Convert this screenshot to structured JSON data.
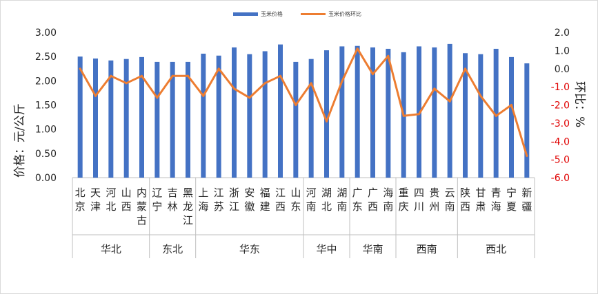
{
  "chart_data": {
    "type": "bar+line",
    "legend": [
      "玉米价格",
      "玉米价格环比"
    ],
    "y_left": {
      "label": "价格：元/公斤",
      "ticks": [
        "0.00",
        "0.50",
        "1.00",
        "1.50",
        "2.00",
        "2.50",
        "3.00"
      ],
      "range": [
        0,
        3.0
      ]
    },
    "y_right": {
      "label": "环比：%",
      "ticks": [
        "2.0",
        "1.0",
        "0.0",
        "-1.0",
        "-2.0",
        "-3.0",
        "-4.0",
        "-5.0",
        "-6.0"
      ],
      "range": [
        -6.0,
        2.0
      ]
    },
    "categories": [
      "北京",
      "天津",
      "河北",
      "山西",
      "内蒙古",
      "辽宁",
      "吉林",
      "黑龙江",
      "上海",
      "江苏",
      "浙江",
      "安徽",
      "福建",
      "江西",
      "山东",
      "河南",
      "湖北",
      "湖南",
      "广东",
      "广西",
      "海南",
      "重庆",
      "四川",
      "贵州",
      "云南",
      "陕西",
      "甘肃",
      "青海",
      "宁夏",
      "新疆"
    ],
    "category_labels": [
      [
        "北",
        "京"
      ],
      [
        "天",
        "津"
      ],
      [
        "河",
        "北"
      ],
      [
        "山",
        "西"
      ],
      [
        "内",
        "蒙",
        "古"
      ],
      [
        "辽",
        "宁"
      ],
      [
        "吉",
        "林"
      ],
      [
        "黑",
        "龙",
        "江"
      ],
      [
        "上",
        "海"
      ],
      [
        "江",
        "苏"
      ],
      [
        "浙",
        "江"
      ],
      [
        "安",
        "徽"
      ],
      [
        "福",
        "建"
      ],
      [
        "江",
        "西"
      ],
      [
        "山",
        "东"
      ],
      [
        "河",
        "南"
      ],
      [
        "湖",
        "北"
      ],
      [
        "湖",
        "南"
      ],
      [
        "广",
        "东"
      ],
      [
        "广",
        "西"
      ],
      [
        "海",
        "南"
      ],
      [
        "重",
        "庆"
      ],
      [
        "四",
        "川"
      ],
      [
        "贵",
        "州"
      ],
      [
        "云",
        "南"
      ],
      [
        "陕",
        "西"
      ],
      [
        "甘",
        "肃"
      ],
      [
        "青",
        "海"
      ],
      [
        "宁",
        "夏"
      ],
      [
        "新",
        "疆"
      ]
    ],
    "groups": [
      {
        "name": "华北",
        "count": 5
      },
      {
        "name": "东北",
        "count": 3
      },
      {
        "name": "华东",
        "count": 7
      },
      {
        "name": "华中",
        "count": 3
      },
      {
        "name": "华南",
        "count": 3
      },
      {
        "name": "西南",
        "count": 4
      },
      {
        "name": "西北",
        "count": 5
      }
    ],
    "series": [
      {
        "name": "玉米价格",
        "type": "bar",
        "color": "#4472c4",
        "values": [
          2.5,
          2.46,
          2.42,
          2.45,
          2.49,
          2.39,
          2.39,
          2.39,
          2.56,
          2.52,
          2.69,
          2.55,
          2.61,
          2.75,
          2.39,
          2.45,
          2.63,
          2.71,
          2.72,
          2.69,
          2.66,
          2.59,
          2.71,
          2.69,
          2.76,
          2.57,
          2.55,
          2.66,
          2.49,
          2.36
        ]
      },
      {
        "name": "玉米价格环比",
        "type": "line",
        "axis": "right",
        "color": "#ed7d31",
        "values": [
          0.0,
          -1.5,
          -0.4,
          -0.8,
          -0.4,
          -1.6,
          -0.4,
          -0.4,
          -1.5,
          0.0,
          -1.1,
          -1.6,
          -0.8,
          -0.4,
          -2.0,
          -0.8,
          -2.9,
          -0.7,
          1.1,
          -0.3,
          0.7,
          -2.6,
          -2.5,
          -1.1,
          -1.8,
          0.0,
          -1.5,
          -2.6,
          -2.0,
          -4.8
        ]
      }
    ]
  }
}
